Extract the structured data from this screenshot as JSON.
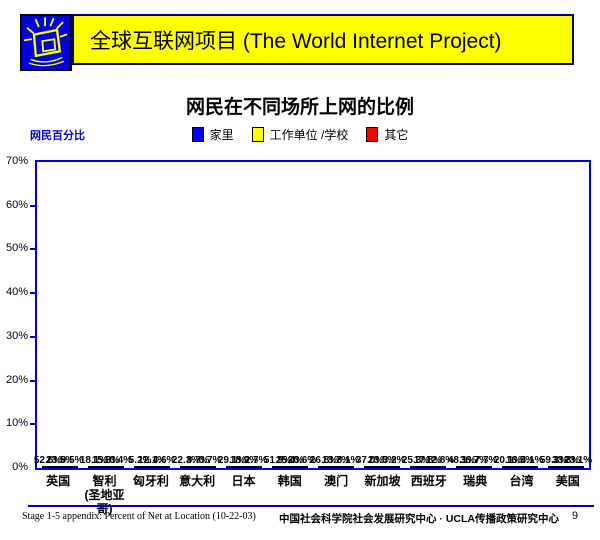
{
  "header": {
    "title": "全球互联网项目 (The World Internet Project)",
    "bar_color": "#ffff00",
    "bar_border_color": "#00008b",
    "logo_icon": "crt-monitor-with-rays-icon",
    "logo_colors": {
      "background": "#0000e0",
      "stroke": "#ffff00"
    }
  },
  "chart_data": {
    "type": "bar",
    "title": "网民在不同场所上网的比例",
    "ylabel": "网民百分比",
    "xlabel": "",
    "ylim": [
      0,
      70
    ],
    "ytick_step": 10,
    "ytick_labels": [
      "0%",
      "10%",
      "20%",
      "30%",
      "40%",
      "50%",
      "60%",
      "70%"
    ],
    "grid": false,
    "legend_position": "top-center",
    "plot_border_color": "#0000dd",
    "bar_border_color": "#000000",
    "categories": [
      "英国",
      "智利\n(圣地亚哥)",
      "匈牙利",
      "意大利",
      "日本",
      "韩国",
      "澳门",
      "新加坡",
      "西班牙",
      "瑞典",
      "台湾",
      "美国"
    ],
    "series": [
      {
        "name": "家里",
        "color": "#0000ff",
        "values": [
          52.6,
          18.1,
          5.2,
          22.3,
          29.1,
          51.9,
          26.8,
          37.0,
          25.3,
          48.1,
          20.1,
          59.3
        ],
        "labels": [
          "52.6%",
          "18.1%",
          "5.2%",
          "22.3%",
          "29.1%",
          "51.9%",
          "26.8%",
          "37.0%",
          "25.3%",
          "48.1%",
          "20.1%",
          "59.3%"
        ]
      },
      {
        "name": "工作单位 /学校",
        "color": "#ffff00",
        "values": [
          23.5,
          15.3,
          12.1,
          8.7,
          18.9,
          25.4,
          13.7,
          23.5,
          17.8,
          36.7,
          16.5,
          33.3
        ],
        "labels": [
          "23.5%",
          "15.3%",
          "12.1%",
          "8.7%",
          "18.9%",
          "25.4%",
          "13.7%",
          "23.5%",
          "17.8%",
          "36.7%",
          "16.5%",
          "33.3%"
        ]
      },
      {
        "name": "其它",
        "color": "#ff0000",
        "values": [
          9.5,
          10.4,
          4.6,
          0.7,
          2.7,
          20.6,
          8.1,
          3.2,
          12.8,
          7.7,
          4.1,
          23.1
        ],
        "labels": [
          "9.5%",
          "10.4%",
          "4.6%",
          "0.7%",
          "2.7%",
          "20.6%",
          "8.1%",
          "3.2%",
          "12.8%",
          "7.7%",
          "4.1%",
          "23.1%"
        ]
      }
    ],
    "data_labels": true
  },
  "footer": {
    "left": "Stage 1-5 appendix: Percent of Net at Location (10-22-03)",
    "center": "中国社会科学院社会发展研究中心 · UCLA传播政策研究中心",
    "page": "9"
  }
}
